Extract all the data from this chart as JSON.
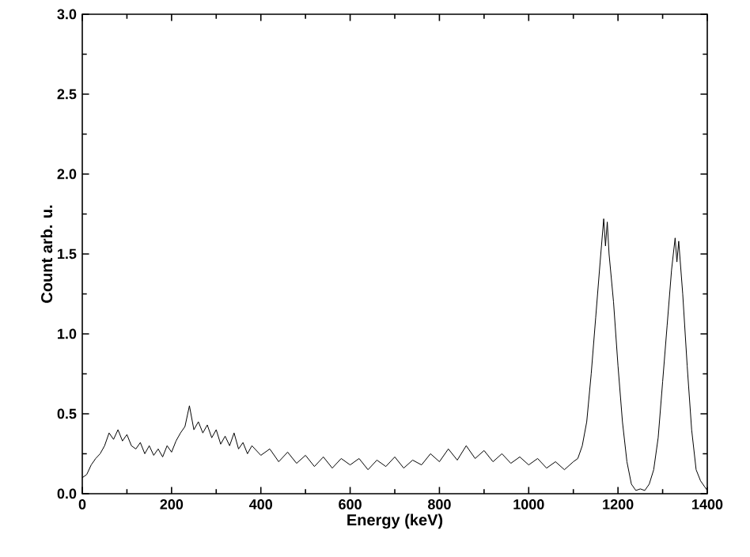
{
  "chart_data": {
    "type": "line",
    "xlabel": "Energy (keV)",
    "ylabel": "Count arb. u.",
    "x": [
      0,
      10,
      20,
      30,
      40,
      50,
      60,
      70,
      80,
      90,
      100,
      110,
      120,
      130,
      140,
      150,
      160,
      170,
      180,
      190,
      200,
      210,
      220,
      230,
      240,
      250,
      260,
      270,
      280,
      290,
      300,
      310,
      320,
      330,
      340,
      350,
      360,
      370,
      380,
      400,
      420,
      440,
      460,
      480,
      500,
      520,
      540,
      560,
      580,
      600,
      620,
      640,
      660,
      680,
      700,
      720,
      740,
      760,
      780,
      800,
      820,
      840,
      860,
      880,
      900,
      920,
      940,
      960,
      980,
      1000,
      1020,
      1040,
      1060,
      1080,
      1100,
      1110,
      1120,
      1130,
      1140,
      1150,
      1160,
      1168,
      1172,
      1176,
      1180,
      1190,
      1200,
      1210,
      1220,
      1230,
      1240,
      1250,
      1260,
      1270,
      1280,
      1290,
      1300,
      1310,
      1320,
      1328,
      1332,
      1336,
      1345,
      1355,
      1365,
      1375,
      1385,
      1395,
      1400
    ],
    "series": [
      {
        "color": "#000000",
        "values": [
          0.1,
          0.12,
          0.18,
          0.22,
          0.25,
          0.3,
          0.38,
          0.34,
          0.4,
          0.33,
          0.37,
          0.3,
          0.28,
          0.32,
          0.25,
          0.3,
          0.24,
          0.28,
          0.23,
          0.3,
          0.26,
          0.33,
          0.38,
          0.42,
          0.55,
          0.4,
          0.45,
          0.38,
          0.43,
          0.35,
          0.4,
          0.31,
          0.36,
          0.3,
          0.38,
          0.28,
          0.32,
          0.25,
          0.3,
          0.24,
          0.28,
          0.2,
          0.26,
          0.19,
          0.24,
          0.17,
          0.23,
          0.16,
          0.22,
          0.18,
          0.22,
          0.15,
          0.21,
          0.17,
          0.23,
          0.16,
          0.21,
          0.18,
          0.25,
          0.2,
          0.28,
          0.21,
          0.3,
          0.22,
          0.27,
          0.2,
          0.25,
          0.19,
          0.23,
          0.18,
          0.22,
          0.16,
          0.2,
          0.15,
          0.2,
          0.22,
          0.3,
          0.45,
          0.75,
          1.1,
          1.45,
          1.72,
          1.55,
          1.7,
          1.5,
          1.2,
          0.8,
          0.45,
          0.2,
          0.06,
          0.02,
          0.03,
          0.02,
          0.06,
          0.15,
          0.35,
          0.7,
          1.05,
          1.4,
          1.6,
          1.45,
          1.58,
          1.25,
          0.8,
          0.4,
          0.15,
          0.08,
          0.04,
          0.02
        ]
      }
    ],
    "xlim": [
      0,
      1400
    ],
    "ylim": [
      0,
      3.0
    ],
    "xticks": [
      0,
      200,
      400,
      600,
      800,
      1000,
      1200,
      1400
    ],
    "yticks": [
      {
        "value": 0,
        "label": "0.0"
      },
      {
        "value": 0.5,
        "label": "0.5"
      },
      {
        "value": 1.0,
        "label": "1.0"
      },
      {
        "value": 1.5,
        "label": "1.5"
      },
      {
        "value": 2.0,
        "label": "2.0"
      },
      {
        "value": 2.5,
        "label": "2.5"
      },
      {
        "value": 3.0,
        "label": "3.0"
      }
    ],
    "marker": "none",
    "line_style": "solid"
  }
}
